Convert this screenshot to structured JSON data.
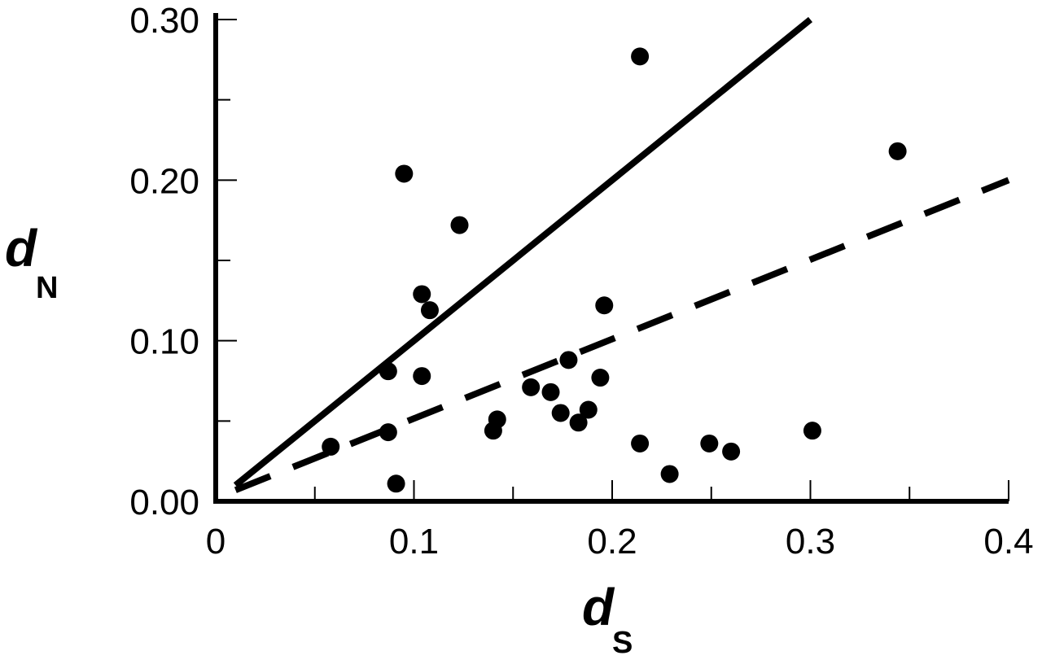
{
  "chart_data": {
    "type": "scatter",
    "title": "",
    "xlabel": "d",
    "xlabel_sub": "S",
    "ylabel": "d",
    "ylabel_sub": "N",
    "xlim": [
      0,
      0.4
    ],
    "ylim": [
      0,
      0.3
    ],
    "x_ticks": [
      {
        "value": 0,
        "label": "0"
      },
      {
        "value": 0.1,
        "label": "0.1"
      },
      {
        "value": 0.2,
        "label": "0.2"
      },
      {
        "value": 0.3,
        "label": "0.3"
      },
      {
        "value": 0.4,
        "label": "0.4"
      }
    ],
    "x_minor_ticks": [
      0.05,
      0.15,
      0.25,
      0.35
    ],
    "y_ticks": [
      {
        "value": 0,
        "label": "0.00"
      },
      {
        "value": 0.1,
        "label": "0.10"
      },
      {
        "value": 0.2,
        "label": "0.20"
      },
      {
        "value": 0.3,
        "label": "0.30"
      }
    ],
    "y_minor_ticks": [
      0.05,
      0.15,
      0.25
    ],
    "grid": false,
    "legend": "none",
    "points": [
      {
        "x": 0.058,
        "y": 0.034
      },
      {
        "x": 0.087,
        "y": 0.081
      },
      {
        "x": 0.087,
        "y": 0.043
      },
      {
        "x": 0.091,
        "y": 0.011
      },
      {
        "x": 0.095,
        "y": 0.204
      },
      {
        "x": 0.104,
        "y": 0.129
      },
      {
        "x": 0.104,
        "y": 0.078
      },
      {
        "x": 0.108,
        "y": 0.119
      },
      {
        "x": 0.123,
        "y": 0.172
      },
      {
        "x": 0.14,
        "y": 0.044
      },
      {
        "x": 0.142,
        "y": 0.051
      },
      {
        "x": 0.159,
        "y": 0.071
      },
      {
        "x": 0.169,
        "y": 0.068
      },
      {
        "x": 0.174,
        "y": 0.055
      },
      {
        "x": 0.178,
        "y": 0.088
      },
      {
        "x": 0.183,
        "y": 0.049
      },
      {
        "x": 0.188,
        "y": 0.057
      },
      {
        "x": 0.194,
        "y": 0.077
      },
      {
        "x": 0.196,
        "y": 0.122
      },
      {
        "x": 0.214,
        "y": 0.277
      },
      {
        "x": 0.214,
        "y": 0.036
      },
      {
        "x": 0.229,
        "y": 0.017
      },
      {
        "x": 0.249,
        "y": 0.036
      },
      {
        "x": 0.26,
        "y": 0.031
      },
      {
        "x": 0.301,
        "y": 0.044
      },
      {
        "x": 0.344,
        "y": 0.218
      }
    ],
    "lines": [
      {
        "style": "solid",
        "x": [
          0.01,
          0.3
        ],
        "y": [
          0.01,
          0.3
        ]
      },
      {
        "style": "dashed",
        "x": [
          0.01,
          0.4
        ],
        "y": [
          0.007,
          0.2
        ]
      }
    ],
    "colors": {
      "marks": "#000000",
      "background": "#ffffff"
    }
  }
}
